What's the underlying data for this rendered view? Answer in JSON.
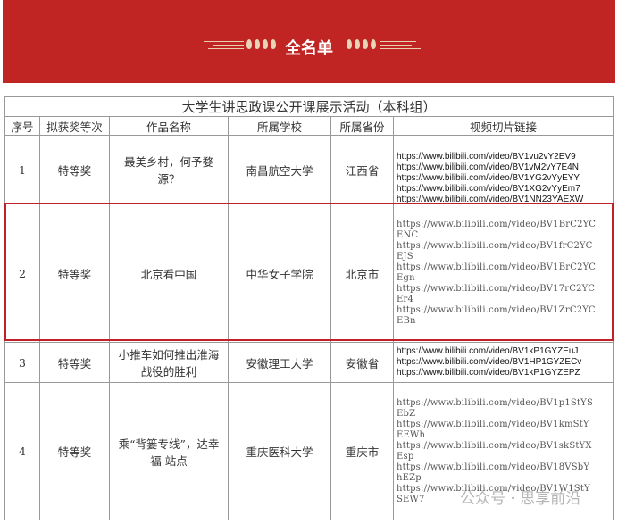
{
  "banner": {
    "title": "全名单",
    "color": "#c12523"
  },
  "table": {
    "title": "大学生讲思政课公开课展示活动（本科组）",
    "headers": [
      "序号",
      "拟获奖等次",
      "作品名称",
      "所属学校",
      "所属省份",
      "视频切片链接"
    ],
    "rows": [
      {
        "no": "1",
        "award": "特等奖",
        "work": "最美乡村，何予婺源？",
        "school": "南昌航空大学",
        "province": "江西省",
        "links": [
          "https://www.bilibili.com/video/BV1vu2vY2EV9",
          "https://www.bilibili.com/video/BV1vM2vY7E4N",
          "https://www.bilibili.com/video/BV1YG2vYyEYY",
          "https://www.bilibili.com/video/BV1XG2vYyEm7",
          "https://www.bilibili.com/video/BV1NN23YAEXW"
        ]
      },
      {
        "no": "2",
        "award": "特等奖",
        "work": "北京看中国",
        "school": "中华女子学院",
        "province": "北京市",
        "highlighted": true,
        "links": [
          "https://www.bilibili.com/video/BV1BrC2YCENC",
          "https://www.bilibili.com/video/BV1frC2YCEJS",
          "https://www.bilibili.com/video/BV1BrC2YCEgn",
          "https://www.bilibili.com/video/BV17rC2YCEr4",
          "https://www.bilibili.com/video/BV1ZrC2YCEBn"
        ]
      },
      {
        "no": "3",
        "award": "特等奖",
        "work": "小推车如何推出淮海战役的胜利",
        "school": "安徽理工大学",
        "province": "安徽省",
        "links": [
          "https://www.bilibili.com/video/BV1kP1GYZEuJ",
          "https://www.bilibili.com/video/BV1HP1GYZECv",
          "https://www.bilibili.com/video/BV1kP1GYZEPZ"
        ]
      },
      {
        "no": "4",
        "award": "特等奖",
        "work": "乘“背篓专线”，达幸福 站点",
        "school": "重庆医科大学",
        "province": "重庆市",
        "links": [
          "https://www.bilibili.com/video/BV1p1StYSEbZ",
          "https://www.bilibili.com/video/BV1kmStYEEWh",
          "https://www.bilibili.com/video/BV1skStYXEsp",
          "https://www.bilibili.com/video/BV18VSbYhEZp",
          "https://www.bilibili.com/video/BV1W1StYSEW7"
        ]
      }
    ]
  },
  "watermark": "公众号 · 思享前沿",
  "highlight_color": "#c0202a"
}
